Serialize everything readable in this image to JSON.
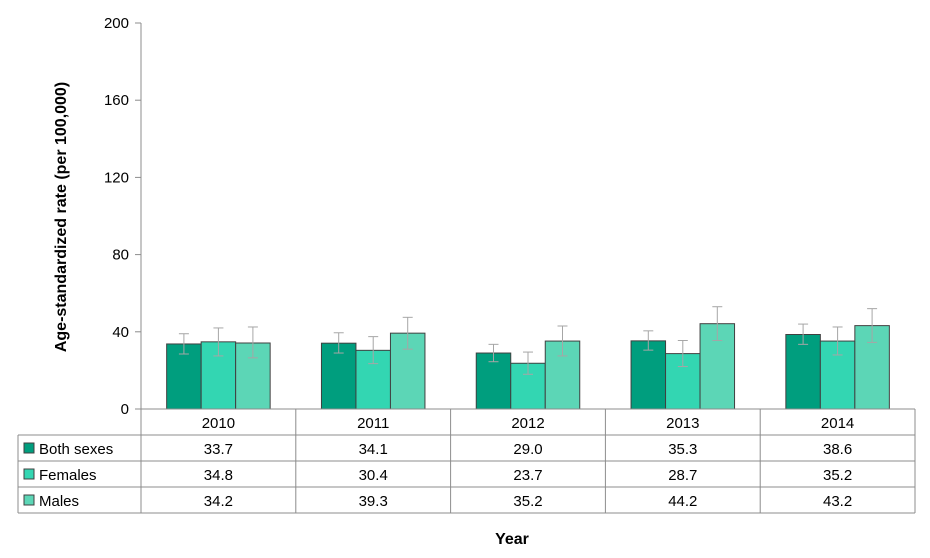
{
  "chart_data": {
    "type": "bar",
    "title": "",
    "xlabel": "Year",
    "ylabel": "Age-standardized rate (per 100,000)",
    "ylim": [
      0,
      200
    ],
    "yticks": [
      0,
      40,
      80,
      120,
      160,
      200
    ],
    "grid": false,
    "legend": "data-table-left",
    "categories": [
      "2010",
      "2011",
      "2012",
      "2013",
      "2014"
    ],
    "series": [
      {
        "name": "Both sexes",
        "color": "#009e7e",
        "values": [
          33.7,
          34.1,
          29.0,
          35.3,
          38.6
        ],
        "labels": [
          "33.7",
          "34.1",
          "29.0",
          "35.3",
          "38.6"
        ],
        "error_low": [
          28.5,
          29.0,
          24.5,
          30.5,
          33.5
        ],
        "error_high": [
          39.0,
          39.5,
          33.5,
          40.5,
          44.0
        ]
      },
      {
        "name": "Females",
        "color": "#33d6b2",
        "values": [
          34.8,
          30.4,
          23.7,
          28.7,
          35.2
        ],
        "labels": [
          "34.8",
          "30.4",
          "23.7",
          "28.7",
          "35.2"
        ],
        "error_low": [
          27.5,
          23.5,
          18.0,
          22.0,
          28.0
        ],
        "error_high": [
          42.0,
          37.5,
          29.5,
          35.5,
          42.5
        ]
      },
      {
        "name": "Males",
        "color": "#5cd6b6",
        "values": [
          34.2,
          39.3,
          35.2,
          44.2,
          43.2
        ],
        "labels": [
          "34.2",
          "39.3",
          "35.2",
          "44.2",
          "43.2"
        ],
        "error_low": [
          26.5,
          31.0,
          27.5,
          35.5,
          34.5
        ],
        "error_high": [
          42.5,
          47.5,
          43.0,
          53.0,
          52.0
        ]
      }
    ]
  }
}
